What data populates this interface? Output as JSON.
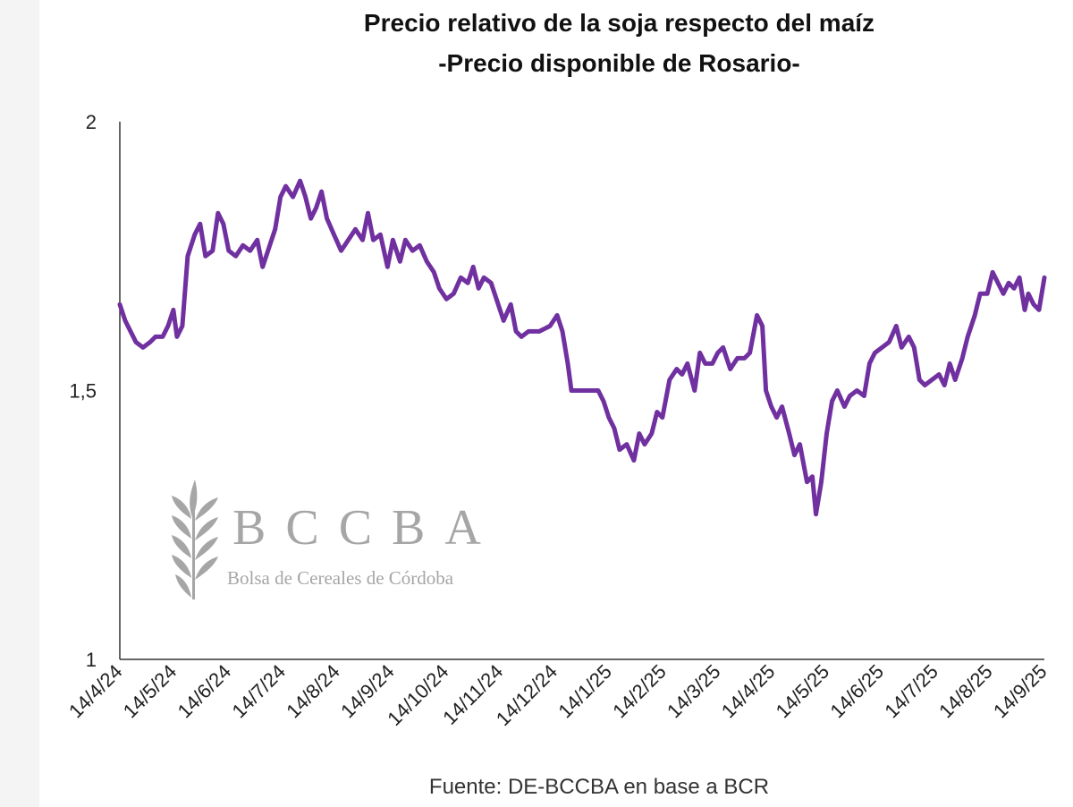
{
  "chart_data": {
    "type": "line",
    "title": "Precio relativo de la soja respecto del maíz",
    "subtitle": "-Precio disponible de Rosario-",
    "xlabel": "",
    "ylabel": "",
    "ylim": [
      1,
      2
    ],
    "y_ticks": [
      "1",
      "1,5",
      "2"
    ],
    "x_ticks": [
      "14/4/24",
      "14/5/24",
      "14/6/24",
      "14/7/24",
      "14/8/24",
      "14/9/24",
      "14/10/24",
      "14/11/24",
      "14/12/24",
      "14/1/25",
      "14/2/25",
      "14/3/25",
      "14/4/25",
      "14/5/25",
      "14/6/25",
      "14/7/25",
      "14/8/25",
      "14/9/25"
    ],
    "series": [
      {
        "color": "#7030a0",
        "points": [
          [
            "2024-04-14",
            1.66
          ],
          [
            "2024-04-17",
            1.63
          ],
          [
            "2024-04-20",
            1.61
          ],
          [
            "2024-04-23",
            1.59
          ],
          [
            "2024-04-27",
            1.58
          ],
          [
            "2024-05-01",
            1.59
          ],
          [
            "2024-05-04",
            1.6
          ],
          [
            "2024-05-08",
            1.6
          ],
          [
            "2024-05-11",
            1.62
          ],
          [
            "2024-05-14",
            1.65
          ],
          [
            "2024-05-16",
            1.6
          ],
          [
            "2024-05-19",
            1.62
          ],
          [
            "2024-05-22",
            1.75
          ],
          [
            "2024-05-26",
            1.79
          ],
          [
            "2024-05-29",
            1.81
          ],
          [
            "2024-06-01",
            1.75
          ],
          [
            "2024-06-05",
            1.76
          ],
          [
            "2024-06-08",
            1.83
          ],
          [
            "2024-06-11",
            1.81
          ],
          [
            "2024-06-14",
            1.76
          ],
          [
            "2024-06-18",
            1.75
          ],
          [
            "2024-06-22",
            1.77
          ],
          [
            "2024-06-26",
            1.76
          ],
          [
            "2024-06-30",
            1.78
          ],
          [
            "2024-07-03",
            1.73
          ],
          [
            "2024-07-07",
            1.77
          ],
          [
            "2024-07-10",
            1.8
          ],
          [
            "2024-07-13",
            1.86
          ],
          [
            "2024-07-16",
            1.88
          ],
          [
            "2024-07-20",
            1.86
          ],
          [
            "2024-07-24",
            1.89
          ],
          [
            "2024-07-27",
            1.86
          ],
          [
            "2024-07-30",
            1.82
          ],
          [
            "2024-08-02",
            1.84
          ],
          [
            "2024-08-05",
            1.87
          ],
          [
            "2024-08-08",
            1.82
          ],
          [
            "2024-08-12",
            1.79
          ],
          [
            "2024-08-16",
            1.76
          ],
          [
            "2024-08-20",
            1.78
          ],
          [
            "2024-08-24",
            1.8
          ],
          [
            "2024-08-28",
            1.78
          ],
          [
            "2024-08-31",
            1.83
          ],
          [
            "2024-09-03",
            1.78
          ],
          [
            "2024-09-07",
            1.79
          ],
          [
            "2024-09-11",
            1.73
          ],
          [
            "2024-09-14",
            1.78
          ],
          [
            "2024-09-18",
            1.74
          ],
          [
            "2024-09-21",
            1.78
          ],
          [
            "2024-09-25",
            1.76
          ],
          [
            "2024-09-29",
            1.77
          ],
          [
            "2024-10-03",
            1.74
          ],
          [
            "2024-10-07",
            1.72
          ],
          [
            "2024-10-10",
            1.69
          ],
          [
            "2024-10-14",
            1.67
          ],
          [
            "2024-10-18",
            1.68
          ],
          [
            "2024-10-22",
            1.71
          ],
          [
            "2024-10-26",
            1.7
          ],
          [
            "2024-10-29",
            1.73
          ],
          [
            "2024-11-01",
            1.69
          ],
          [
            "2024-11-04",
            1.71
          ],
          [
            "2024-11-08",
            1.7
          ],
          [
            "2024-11-12",
            1.66
          ],
          [
            "2024-11-15",
            1.63
          ],
          [
            "2024-11-19",
            1.66
          ],
          [
            "2024-11-22",
            1.61
          ],
          [
            "2024-11-25",
            1.6
          ],
          [
            "2024-11-29",
            1.61
          ],
          [
            "2024-12-05",
            1.61
          ],
          [
            "2024-12-11",
            1.62
          ],
          [
            "2024-12-15",
            1.64
          ],
          [
            "2024-12-18",
            1.61
          ],
          [
            "2024-12-21",
            1.55
          ],
          [
            "2024-12-23",
            1.5
          ],
          [
            "2024-12-28",
            1.5
          ],
          [
            "2025-01-02",
            1.5
          ],
          [
            "2025-01-07",
            1.5
          ],
          [
            "2025-01-10",
            1.48
          ],
          [
            "2025-01-13",
            1.45
          ],
          [
            "2025-01-16",
            1.43
          ],
          [
            "2025-01-19",
            1.39
          ],
          [
            "2025-01-23",
            1.4
          ],
          [
            "2025-01-27",
            1.37
          ],
          [
            "2025-01-30",
            1.42
          ],
          [
            "2025-02-02",
            1.4
          ],
          [
            "2025-02-06",
            1.42
          ],
          [
            "2025-02-09",
            1.46
          ],
          [
            "2025-02-12",
            1.45
          ],
          [
            "2025-02-16",
            1.52
          ],
          [
            "2025-02-20",
            1.54
          ],
          [
            "2025-02-23",
            1.53
          ],
          [
            "2025-02-26",
            1.55
          ],
          [
            "2025-03-02",
            1.5
          ],
          [
            "2025-03-05",
            1.57
          ],
          [
            "2025-03-08",
            1.55
          ],
          [
            "2025-03-12",
            1.55
          ],
          [
            "2025-03-15",
            1.57
          ],
          [
            "2025-03-18",
            1.58
          ],
          [
            "2025-03-22",
            1.54
          ],
          [
            "2025-03-26",
            1.56
          ],
          [
            "2025-03-30",
            1.56
          ],
          [
            "2025-04-02",
            1.57
          ],
          [
            "2025-04-06",
            1.64
          ],
          [
            "2025-04-09",
            1.62
          ],
          [
            "2025-04-11",
            1.5
          ],
          [
            "2025-04-14",
            1.47
          ],
          [
            "2025-04-17",
            1.45
          ],
          [
            "2025-04-20",
            1.47
          ],
          [
            "2025-04-24",
            1.42
          ],
          [
            "2025-04-27",
            1.38
          ],
          [
            "2025-04-30",
            1.4
          ],
          [
            "2025-05-04",
            1.33
          ],
          [
            "2025-05-07",
            1.34
          ],
          [
            "2025-05-09",
            1.27
          ],
          [
            "2025-05-12",
            1.33
          ],
          [
            "2025-05-15",
            1.42
          ],
          [
            "2025-05-18",
            1.48
          ],
          [
            "2025-05-21",
            1.5
          ],
          [
            "2025-05-25",
            1.47
          ],
          [
            "2025-05-28",
            1.49
          ],
          [
            "2025-06-01",
            1.5
          ],
          [
            "2025-06-05",
            1.49
          ],
          [
            "2025-06-08",
            1.55
          ],
          [
            "2025-06-11",
            1.57
          ],
          [
            "2025-06-15",
            1.58
          ],
          [
            "2025-06-19",
            1.59
          ],
          [
            "2025-06-23",
            1.62
          ],
          [
            "2025-06-26",
            1.58
          ],
          [
            "2025-06-30",
            1.6
          ],
          [
            "2025-07-03",
            1.58
          ],
          [
            "2025-07-06",
            1.52
          ],
          [
            "2025-07-09",
            1.51
          ],
          [
            "2025-07-13",
            1.52
          ],
          [
            "2025-07-17",
            1.53
          ],
          [
            "2025-07-20",
            1.51
          ],
          [
            "2025-07-23",
            1.55
          ],
          [
            "2025-07-26",
            1.52
          ],
          [
            "2025-07-30",
            1.56
          ],
          [
            "2025-08-02",
            1.6
          ],
          [
            "2025-08-06",
            1.64
          ],
          [
            "2025-08-09",
            1.68
          ],
          [
            "2025-08-13",
            1.68
          ],
          [
            "2025-08-16",
            1.72
          ],
          [
            "2025-08-19",
            1.7
          ],
          [
            "2025-08-22",
            1.68
          ],
          [
            "2025-08-25",
            1.7
          ],
          [
            "2025-08-28",
            1.69
          ],
          [
            "2025-08-31",
            1.71
          ],
          [
            "2025-09-03",
            1.65
          ],
          [
            "2025-09-05",
            1.68
          ],
          [
            "2025-09-08",
            1.66
          ],
          [
            "2025-09-11",
            1.65
          ],
          [
            "2025-09-14",
            1.71
          ]
        ]
      }
    ]
  },
  "source": "Fuente: DE-BCCBA en base a BCR",
  "watermark": {
    "name": "BCCBA",
    "subtitle": "Bolsa de Cereales de Córdoba",
    "icon": "wheat-icon",
    "color": "#a6a6a6"
  }
}
